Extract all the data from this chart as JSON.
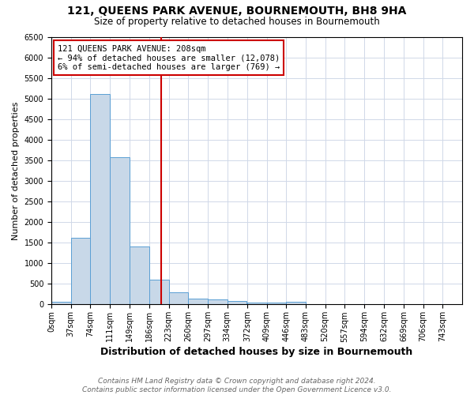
{
  "title": "121, QUEENS PARK AVENUE, BOURNEMOUTH, BH8 9HA",
  "subtitle": "Size of property relative to detached houses in Bournemouth",
  "xlabel": "Distribution of detached houses by size in Bournemouth",
  "ylabel": "Number of detached properties",
  "bin_labels": [
    "0sqm",
    "37sqm",
    "74sqm",
    "111sqm",
    "149sqm",
    "186sqm",
    "223sqm",
    "260sqm",
    "297sqm",
    "334sqm",
    "372sqm",
    "409sqm",
    "446sqm",
    "483sqm",
    "520sqm",
    "557sqm",
    "594sqm",
    "632sqm",
    "669sqm",
    "706sqm",
    "743sqm"
  ],
  "bin_edges": [
    0,
    37,
    74,
    111,
    149,
    186,
    223,
    260,
    297,
    334,
    372,
    409,
    446,
    483,
    520,
    557,
    594,
    632,
    669,
    706,
    743,
    780
  ],
  "bar_heights": [
    75,
    1625,
    5100,
    3575,
    1400,
    600,
    300,
    150,
    130,
    90,
    50,
    40,
    60,
    0,
    0,
    0,
    0,
    0,
    0,
    0,
    0
  ],
  "bar_color": "#c8d8e8",
  "bar_edge_color": "#5a9fd4",
  "property_size": 208,
  "red_line_color": "#cc0000",
  "annotation_text": "121 QUEENS PARK AVENUE: 208sqm\n← 94% of detached houses are smaller (12,078)\n6% of semi-detached houses are larger (769) →",
  "annotation_box_color": "#ffffff",
  "annotation_box_edge": "#cc0000",
  "ylim": [
    0,
    6500
  ],
  "yticks": [
    0,
    500,
    1000,
    1500,
    2000,
    2500,
    3000,
    3500,
    4000,
    4500,
    5000,
    5500,
    6000,
    6500
  ],
  "grid_color": "#d0d8e8",
  "footer_line1": "Contains HM Land Registry data © Crown copyright and database right 2024.",
  "footer_line2": "Contains public sector information licensed under the Open Government Licence v3.0.",
  "title_fontsize": 10,
  "subtitle_fontsize": 8.5,
  "xlabel_fontsize": 9,
  "ylabel_fontsize": 8,
  "tick_fontsize": 7,
  "annotation_fontsize": 7.5,
  "footer_fontsize": 6.5
}
